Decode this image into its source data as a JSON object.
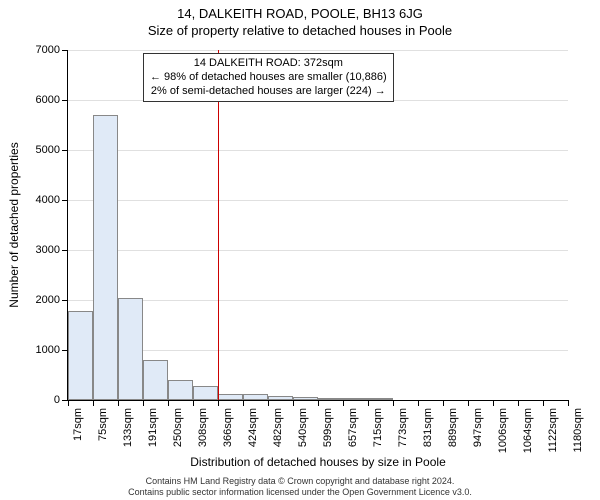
{
  "titles": {
    "main": "14, DALKEITH ROAD, POOLE, BH13 6JG",
    "sub": "Size of property relative to detached houses in Poole"
  },
  "annotation": {
    "line1": "14 DALKEITH ROAD: 372sqm",
    "line2": "← 98% of detached houses are smaller (10,886)",
    "line3": "2% of semi-detached houses are larger (224) →"
  },
  "axes": {
    "ylabel": "Number of detached properties",
    "xlabel": "Distribution of detached houses by size in Poole",
    "ylim_max": 7000,
    "ytick_step": 1000,
    "ytick_labels": [
      "0",
      "1000",
      "2000",
      "3000",
      "4000",
      "5000",
      "6000",
      "7000"
    ],
    "xtick_labels": [
      "17sqm",
      "75sqm",
      "133sqm",
      "191sqm",
      "250sqm",
      "308sqm",
      "366sqm",
      "424sqm",
      "482sqm",
      "540sqm",
      "599sqm",
      "657sqm",
      "715sqm",
      "773sqm",
      "831sqm",
      "889sqm",
      "947sqm",
      "1006sqm",
      "1064sqm",
      "1122sqm",
      "1180sqm"
    ]
  },
  "chart": {
    "type": "histogram",
    "bar_color": "#e0eaf7",
    "bar_border_color": "#888888",
    "background_color": "#ffffff",
    "grid_color": "#e0e0e0",
    "values": [
      1780,
      5700,
      2050,
      800,
      400,
      280,
      120,
      120,
      80,
      70,
      50,
      50,
      50,
      0,
      0,
      0,
      0,
      0,
      0,
      0
    ],
    "vline_index": 6,
    "vline_color": "#cc0000"
  },
  "footnote": {
    "line1": "Contains HM Land Registry data © Crown copyright and database right 2024.",
    "line2": "Contains public sector information licensed under the Open Government Licence v3.0."
  },
  "style": {
    "title_fontsize": 13,
    "label_fontsize": 12,
    "tick_fontsize": 11,
    "annotation_fontsize": 11,
    "footnote_fontsize": 9
  }
}
